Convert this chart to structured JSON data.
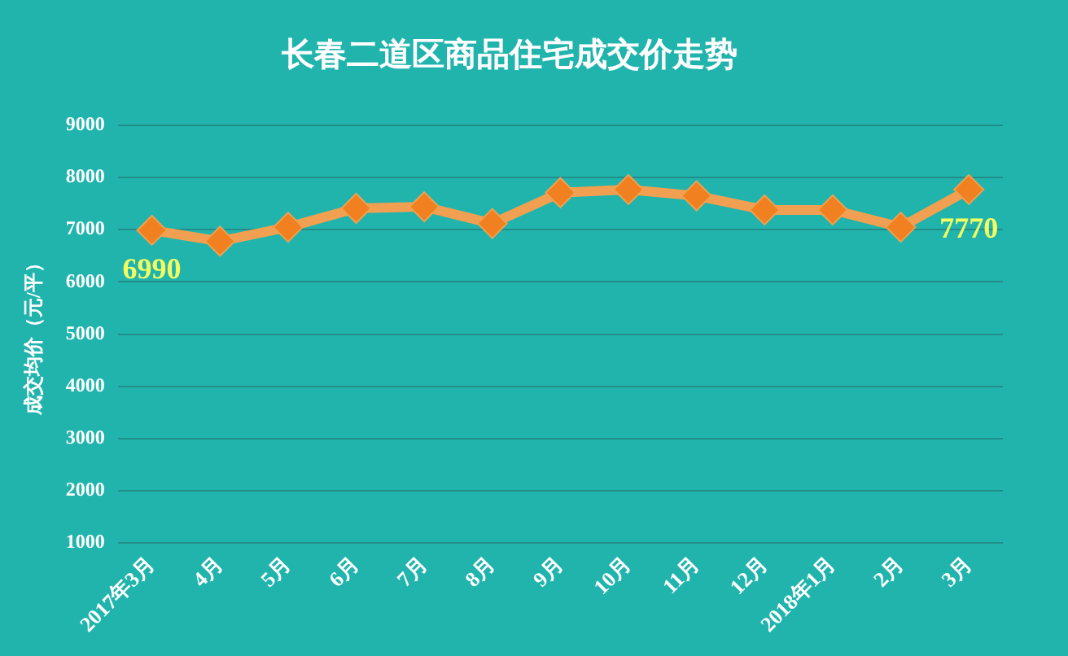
{
  "chart_data": {
    "type": "line",
    "title": "长春二道区商品住宅成交价走势",
    "ylabel": "成交均价（元/平）",
    "categories": [
      "2017年3月",
      "4月",
      "5月",
      "6月",
      "7月",
      "8月",
      "9月",
      "10月",
      "11月",
      "12月",
      "2018年1月",
      "2月",
      "3月"
    ],
    "series": [
      {
        "color": "#f0a050",
        "values": [
          6990,
          6780,
          7050,
          7410,
          7440,
          7120,
          7710,
          7770,
          7650,
          7380,
          7380,
          7050,
          7770
        ],
        "value_labels": [
          "6990",
          null,
          null,
          null,
          null,
          null,
          null,
          null,
          null,
          null,
          null,
          null,
          "7770"
        ]
      }
    ],
    "ylim": [
      1000,
      9000
    ],
    "yticks": [
      1000,
      2000,
      3000,
      4000,
      5000,
      6000,
      7000,
      8000,
      9000
    ],
    "grid": "y",
    "legend": false,
    "marker": "diamond",
    "line_style": "solid"
  }
}
